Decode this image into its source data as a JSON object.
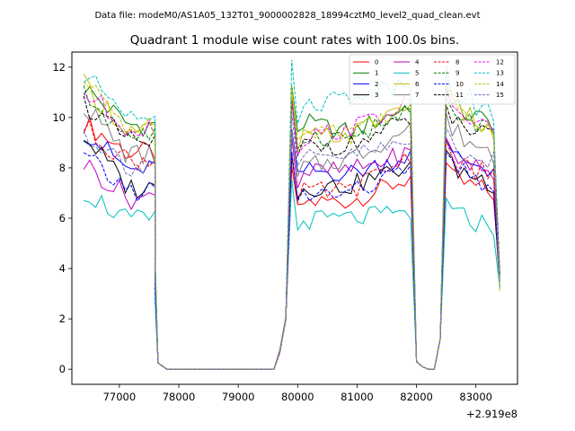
{
  "chart_data": {
    "type": "line",
    "suptitle": "Data file: modeM0/AS1A05_132T01_9000002828_18994cztM0_level2_quad_clean.evt",
    "title": "Quadrant 1 module wise count rates with 100.0s bins.",
    "xlabel": "",
    "ylabel": "",
    "x_offset_label": "+2.919e8",
    "xlim": [
      76200,
      83700
    ],
    "ylim": [
      -0.6,
      12.6
    ],
    "x_ticks": [
      77000,
      78000,
      79000,
      80000,
      81000,
      82000,
      83000
    ],
    "x_tick_labels": [
      "77000",
      "78000",
      "79000",
      "80000",
      "81000",
      "82000",
      "83000"
    ],
    "y_ticks": [
      0,
      2,
      4,
      6,
      8,
      10,
      12
    ],
    "y_tick_labels": [
      "0",
      "2",
      "4",
      "6",
      "8",
      "10",
      "12"
    ],
    "legend_position": "upper-right",
    "segments": [
      {
        "start": 76400,
        "step": 100,
        "count": 13,
        "decay_to_zero_at": 77700
      },
      {
        "start": 77800,
        "step": 100,
        "count": 19,
        "flat_zero": true
      },
      {
        "start": 79700,
        "step": 100,
        "count": 2,
        "rise": [
          0.7,
          2.0
        ]
      },
      {
        "start": 79900,
        "step": 100,
        "count": 21
      },
      {
        "start": 82000,
        "step": 100,
        "count": 5,
        "gap": [
          0.3,
          0.1,
          0.0,
          0.0,
          1.2
        ]
      },
      {
        "start": 82500,
        "step": 100,
        "count": 10
      }
    ],
    "series": [
      {
        "name": "0",
        "color": "#ff0000",
        "dash": "solid",
        "levels": [
          9.8,
          8.6,
          6.6,
          6.7,
          7.6,
          6.9
        ]
      },
      {
        "name": "1",
        "color": "#008000",
        "dash": "solid",
        "levels": [
          11.2,
          9.7,
          9.9,
          9.4,
          10.5,
          9.6
        ]
      },
      {
        "name": "2",
        "color": "#0000ff",
        "dash": "solid",
        "levels": [
          9.5,
          7.9,
          7.9,
          7.8,
          8.5,
          7.9
        ]
      },
      {
        "name": "3",
        "color": "#000000",
        "dash": "solid",
        "levels": [
          9.3,
          7.2,
          7.2,
          7.3,
          8.1,
          7.3
        ]
      },
      {
        "name": "4",
        "color": "#bf00bf",
        "dash": "solid",
        "levels": [
          8.2,
          6.8,
          7.8,
          7.9,
          8.6,
          7.6
        ]
      },
      {
        "name": "5",
        "color": "#00bfbf",
        "dash": "solid",
        "levels": [
          7.1,
          5.9,
          5.9,
          6.0,
          6.2,
          5.6
        ]
      },
      {
        "name": "6",
        "color": "#bfbf00",
        "dash": "solid",
        "levels": [
          11.3,
          9.5,
          9.2,
          9.3,
          10.7,
          9.2
        ]
      },
      {
        "name": "7",
        "color": "#808080",
        "dash": "solid",
        "levels": [
          10.5,
          8.5,
          7.9,
          8.4,
          9.6,
          8.4
        ]
      },
      {
        "name": "8",
        "color": "#ff0000",
        "dash": "dashed",
        "levels": [
          9.6,
          8.3,
          7.0,
          7.1,
          8.5,
          7.5
        ]
      },
      {
        "name": "9",
        "color": "#008000",
        "dash": "dashed",
        "levels": [
          10.9,
          9.3,
          9.3,
          9.2,
          10.2,
          9.4
        ]
      },
      {
        "name": "10",
        "color": "#0000ff",
        "dash": "dashed",
        "levels": [
          8.4,
          7.1,
          6.9,
          7.0,
          8.0,
          7.2
        ]
      },
      {
        "name": "11",
        "color": "#000000",
        "dash": "dashed",
        "levels": [
          10.6,
          9.0,
          8.9,
          8.9,
          9.9,
          9.0
        ]
      },
      {
        "name": "12",
        "color": "#ff00ff",
        "dash": "dashed",
        "levels": [
          11.0,
          9.6,
          9.1,
          9.6,
          10.6,
          9.2
        ]
      },
      {
        "name": "13",
        "color": "#00bfbf",
        "dash": "dashed",
        "levels": [
          11.6,
          10.3,
          10.4,
          10.9,
          11.4,
          9.8
        ]
      },
      {
        "name": "14",
        "color": "#bfbf00",
        "dash": "dashed",
        "levels": [
          11.4,
          9.6,
          9.6,
          9.5,
          10.6,
          9.4
        ]
      },
      {
        "name": "15",
        "color": "#7070c0",
        "dash": "dashed",
        "levels": [
          9.4,
          8.1,
          8.3,
          8.5,
          9.0,
          8.1
        ]
      }
    ]
  }
}
